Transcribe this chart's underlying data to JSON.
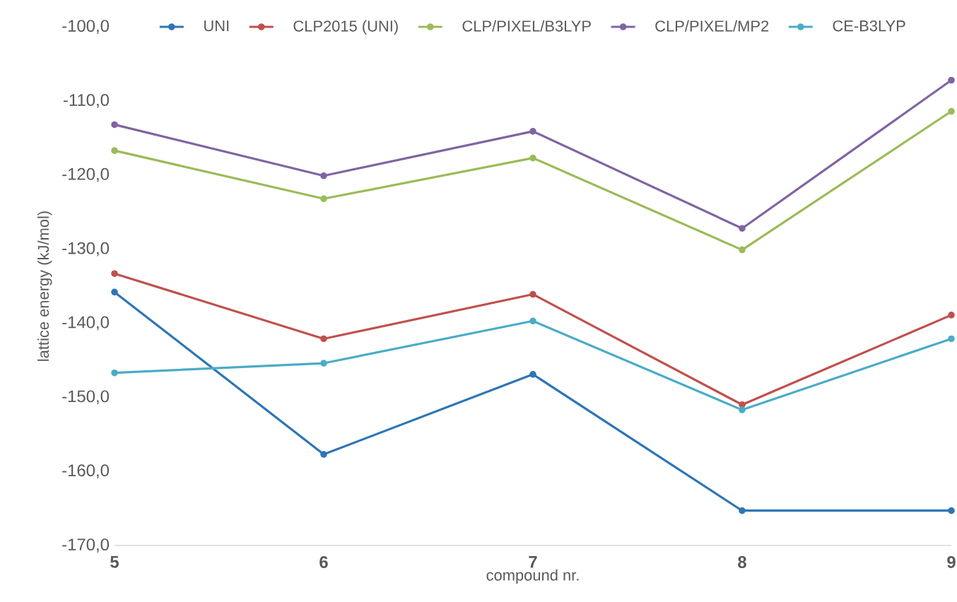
{
  "chart_data": {
    "type": "line",
    "xlabel": "compound nr.",
    "ylabel": "lattice energy (kJ/mol)",
    "categories": [
      "5",
      "6",
      "7",
      "8",
      "9"
    ],
    "series": [
      {
        "name": "UNI",
        "color": "#2e75b6",
        "values": [
          -135.8,
          -157.7,
          -146.9,
          -165.3,
          -165.3
        ]
      },
      {
        "name": "CLP2015 (UNI)",
        "color": "#c0504d",
        "values": [
          -133.3,
          -142.1,
          -136.1,
          -151.0,
          -138.9
        ]
      },
      {
        "name": "CLP/PIXEL/B3LYP",
        "color": "#9bbb59",
        "values": [
          -116.7,
          -123.2,
          -117.7,
          -130.1,
          -111.4
        ]
      },
      {
        "name": "CLP/PIXEL/MP2",
        "color": "#8064a2",
        "values": [
          -113.2,
          -120.1,
          -114.1,
          -127.2,
          -107.2
        ]
      },
      {
        "name": "CE-B3LYP",
        "color": "#4bacc6",
        "values": [
          -146.7,
          -145.4,
          -139.7,
          -151.7,
          -142.1
        ]
      }
    ],
    "ylim": [
      -170,
      -100
    ],
    "yticks": [
      {
        "value": -170,
        "label": "-170,0"
      },
      {
        "value": -160,
        "label": "-160,0"
      },
      {
        "value": -150,
        "label": "-150,0"
      },
      {
        "value": -140,
        "label": "-140,0"
      },
      {
        "value": -130,
        "label": "-130,0"
      },
      {
        "value": -120,
        "label": "-120,0"
      },
      {
        "value": -110,
        "label": "-110,0"
      },
      {
        "value": -100,
        "label": "-100,0"
      }
    ],
    "grid": false,
    "legend": "top",
    "marker": "circle",
    "line_style": "solid"
  }
}
